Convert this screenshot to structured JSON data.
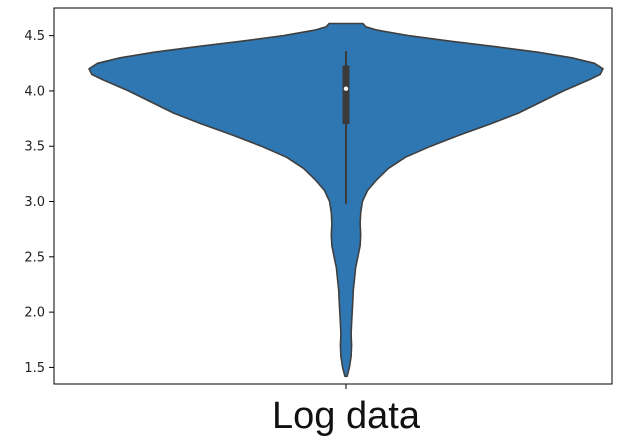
{
  "chart_data": {
    "type": "violin",
    "categories": [
      "Log data"
    ],
    "title": "",
    "xlabel": "",
    "ylabel": "",
    "ylim": [
      1.35,
      4.75
    ],
    "y_ticks": [
      1.5,
      2.0,
      2.5,
      3.0,
      3.5,
      4.0,
      4.5
    ],
    "y_tick_labels": [
      "1.5",
      "2.0",
      "2.5",
      "3.0",
      "3.5",
      "4.0",
      "4.5"
    ],
    "grid": false,
    "colors": {
      "violin_fill": "#2f77b2",
      "violin_edge": "#3f3f3f",
      "box": "#3a3a3a",
      "median": "#ffffff",
      "axes": "#000000"
    },
    "series": [
      {
        "category": "Log data",
        "min": 1.42,
        "max": 4.61,
        "median": 4.02,
        "q1": 3.7,
        "q3": 4.23,
        "whisker_low": 2.98,
        "whisker_high": 4.36,
        "density_profile": [
          {
            "y": 1.42,
            "half_width": 0.002
          },
          {
            "y": 1.5,
            "half_width": 0.006
          },
          {
            "y": 1.6,
            "half_width": 0.009
          },
          {
            "y": 1.7,
            "half_width": 0.01
          },
          {
            "y": 1.8,
            "half_width": 0.009
          },
          {
            "y": 1.9,
            "half_width": 0.01
          },
          {
            "y": 2.0,
            "half_width": 0.011
          },
          {
            "y": 2.1,
            "half_width": 0.012
          },
          {
            "y": 2.2,
            "half_width": 0.013
          },
          {
            "y": 2.3,
            "half_width": 0.015
          },
          {
            "y": 2.4,
            "half_width": 0.017
          },
          {
            "y": 2.5,
            "half_width": 0.021
          },
          {
            "y": 2.6,
            "half_width": 0.025
          },
          {
            "y": 2.7,
            "half_width": 0.026
          },
          {
            "y": 2.8,
            "half_width": 0.025
          },
          {
            "y": 2.9,
            "half_width": 0.026
          },
          {
            "y": 3.0,
            "half_width": 0.029
          },
          {
            "y": 3.1,
            "half_width": 0.038
          },
          {
            "y": 3.2,
            "half_width": 0.055
          },
          {
            "y": 3.3,
            "half_width": 0.075
          },
          {
            "y": 3.4,
            "half_width": 0.105
          },
          {
            "y": 3.5,
            "half_width": 0.15
          },
          {
            "y": 3.6,
            "half_width": 0.2
          },
          {
            "y": 3.7,
            "half_width": 0.255
          },
          {
            "y": 3.8,
            "half_width": 0.305
          },
          {
            "y": 3.9,
            "half_width": 0.345
          },
          {
            "y": 4.0,
            "half_width": 0.385
          },
          {
            "y": 4.1,
            "half_width": 0.43
          },
          {
            "y": 4.15,
            "half_width": 0.45
          },
          {
            "y": 4.2,
            "half_width": 0.455
          },
          {
            "y": 4.25,
            "half_width": 0.44
          },
          {
            "y": 4.3,
            "half_width": 0.4
          },
          {
            "y": 4.35,
            "half_width": 0.34
          },
          {
            "y": 4.4,
            "half_width": 0.265
          },
          {
            "y": 4.45,
            "half_width": 0.185
          },
          {
            "y": 4.5,
            "half_width": 0.11
          },
          {
            "y": 4.55,
            "half_width": 0.055
          },
          {
            "y": 4.58,
            "half_width": 0.035
          },
          {
            "y": 4.61,
            "half_width": 0.03
          }
        ]
      }
    ]
  }
}
